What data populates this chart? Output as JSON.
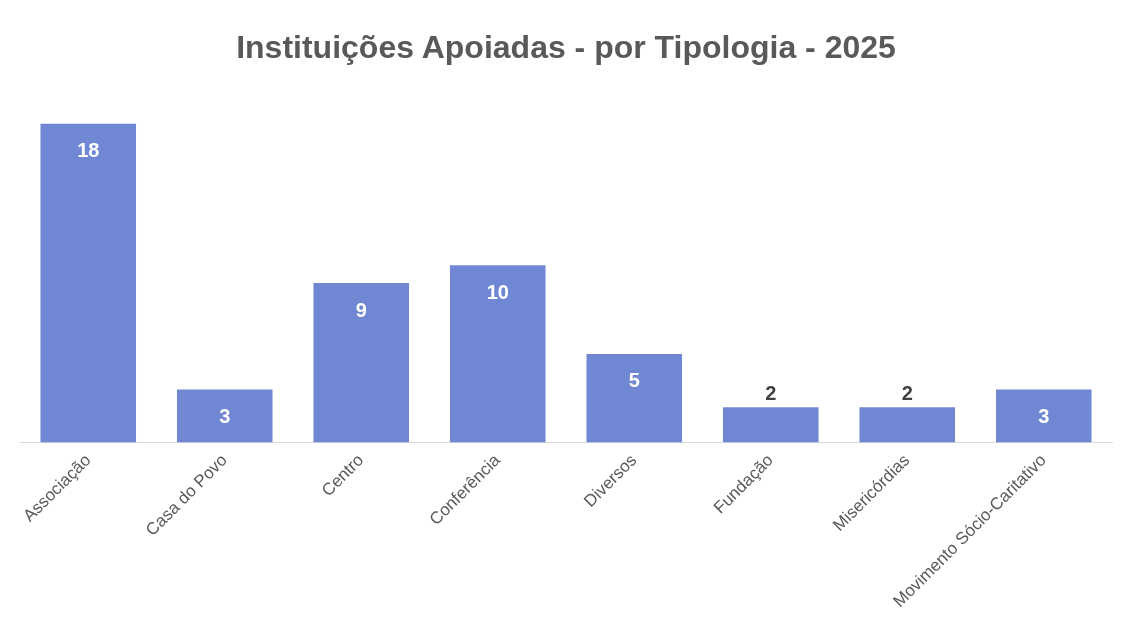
{
  "chart_data": {
    "type": "bar",
    "title": "Instituições Apoiadas - por Tipologia - 2025",
    "categories": [
      "Associação",
      "Casa do Povo",
      "Centro",
      "Conferência",
      "Diversos",
      "Fundação",
      "Misericórdias",
      "Movimento Sócio-Caritativo"
    ],
    "values": [
      18,
      3,
      9,
      10,
      5,
      2,
      2,
      3
    ],
    "color": "#7088d4",
    "data_labels": true,
    "grid": false,
    "legend": false
  }
}
